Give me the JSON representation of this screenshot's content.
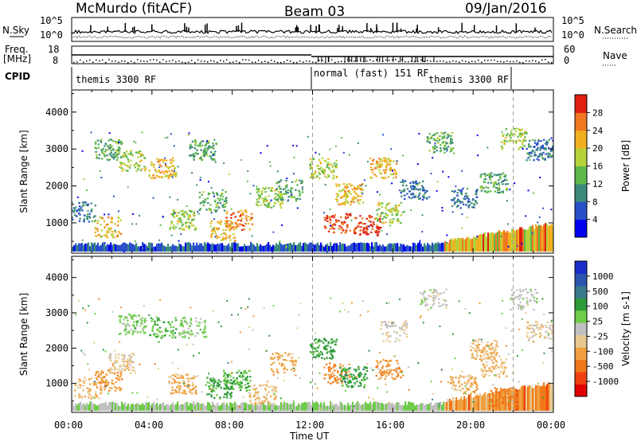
{
  "header": {
    "radar": "McMurdo (fitACF)",
    "beam": "Beam 03",
    "date": "09/Jan/2016"
  },
  "panels": {
    "nsky": {
      "left_label": "N.Sky",
      "right_label": "N.Search",
      "left_ticks": [
        "10^5",
        "10^0"
      ],
      "right_ticks": [
        "10^5",
        "10^0"
      ]
    },
    "freq": {
      "left_label_1": "Freq.",
      "left_label_2": "[MHz]",
      "right_label": "Nave",
      "left_ticks": [
        "18",
        "8"
      ],
      "right_ticks": [
        "60",
        "0"
      ]
    },
    "cpid": {
      "label": "CPID",
      "segments": [
        "themis 3300 RF",
        "normal (fast) 151 RF",
        "themis 3300 RF"
      ]
    }
  },
  "chart_data": [
    {
      "type": "heatmap",
      "title": "",
      "xlabel": "Time UT",
      "ylabel": "Slant Range [km]",
      "xlim_hours": [
        0,
        24
      ],
      "ylim_km": [
        180,
        4600
      ],
      "x_tick_labels": [
        "00:00",
        "04:00",
        "08:00",
        "12:00",
        "16:00",
        "20:00",
        "00:00"
      ],
      "y_tick_values": [
        1000,
        2000,
        3000,
        4000
      ],
      "colorbar": {
        "label": "Power [dB]",
        "ticks": [
          4,
          8,
          12,
          16,
          20,
          24,
          28
        ],
        "range": [
          0,
          30
        ],
        "colors": [
          "#0000ee",
          "#2a4fc8",
          "#3a8a7a",
          "#5fb84a",
          "#b5d23a",
          "#f0b020",
          "#f07820",
          "#e02010"
        ]
      },
      "blobs": [
        {
          "t": 0.5,
          "r": 1300,
          "value": 8
        },
        {
          "t": 1.8,
          "r": 900,
          "value": 20
        },
        {
          "t": 1.8,
          "r": 3000,
          "value": 12
        },
        {
          "t": 3.0,
          "r": 2700,
          "value": 16
        },
        {
          "t": 4.5,
          "r": 2500,
          "value": 20
        },
        {
          "t": 5.5,
          "r": 1100,
          "value": 16
        },
        {
          "t": 6.5,
          "r": 3000,
          "value": 12
        },
        {
          "t": 7.0,
          "r": 1600,
          "value": 12
        },
        {
          "t": 7.5,
          "r": 800,
          "value": 20
        },
        {
          "t": 8.3,
          "r": 1100,
          "value": 24
        },
        {
          "t": 9.8,
          "r": 1700,
          "value": 16
        },
        {
          "t": 10.8,
          "r": 1900,
          "value": 12
        },
        {
          "t": 12.5,
          "r": 2500,
          "value": 16
        },
        {
          "t": 13.2,
          "r": 1000,
          "value": 26
        },
        {
          "t": 13.8,
          "r": 1800,
          "value": 20
        },
        {
          "t": 14.7,
          "r": 950,
          "value": 28
        },
        {
          "t": 15.8,
          "r": 1300,
          "value": 16
        },
        {
          "t": 15.5,
          "r": 2500,
          "value": 20
        },
        {
          "t": 17.0,
          "r": 1900,
          "value": 8
        },
        {
          "t": 18.3,
          "r": 3200,
          "value": 12
        },
        {
          "t": 19.5,
          "r": 1700,
          "value": 8
        },
        {
          "t": 21.0,
          "r": 2100,
          "value": 12
        },
        {
          "t": 22.0,
          "r": 3300,
          "value": 16
        },
        {
          "t": 23.3,
          "r": 3000,
          "value": 8
        }
      ]
    },
    {
      "type": "heatmap",
      "title": "",
      "xlabel": "Time UT",
      "ylabel": "Slant Range [km]",
      "xlim_hours": [
        0,
        24
      ],
      "ylim_km": [
        180,
        4600
      ],
      "x_tick_labels": [
        "00:00",
        "04:00",
        "08:00",
        "12:00",
        "16:00",
        "20:00",
        "00:00"
      ],
      "y_tick_values": [
        1000,
        2000,
        3000,
        4000
      ],
      "colorbar": {
        "label": "Velocity [m s-1]",
        "ticks": [
          "-1000",
          "-500",
          "-100",
          "-25",
          "25",
          "100",
          "500",
          "1000"
        ],
        "range": [
          -1200,
          1200
        ],
        "colors": [
          "#e00000",
          "#f04010",
          "#f07818",
          "#f0a040",
          "#e8c890",
          "#c0c0c0",
          "#6ecc4a",
          "#2f9a3a",
          "#3a7a8a",
          "#2d55b0",
          "#1a2ec8"
        ]
      },
      "blobs": [
        {
          "t": 0.8,
          "r": 900,
          "value": -300
        },
        {
          "t": 1.8,
          "r": 1100,
          "value": -500
        },
        {
          "t": 2.5,
          "r": 1600,
          "value": -200
        },
        {
          "t": 3.0,
          "r": 2700,
          "value": 200
        },
        {
          "t": 4.5,
          "r": 2600,
          "value": 300
        },
        {
          "t": 5.5,
          "r": 1000,
          "value": -400
        },
        {
          "t": 6.0,
          "r": 2600,
          "value": 150
        },
        {
          "t": 7.3,
          "r": 900,
          "value": 400
        },
        {
          "t": 8.2,
          "r": 1100,
          "value": 300
        },
        {
          "t": 9.5,
          "r": 700,
          "value": -300
        },
        {
          "t": 10.5,
          "r": 1600,
          "value": -400
        },
        {
          "t": 12.5,
          "r": 2000,
          "value": 400
        },
        {
          "t": 13.2,
          "r": 1300,
          "value": -600
        },
        {
          "t": 14.0,
          "r": 1200,
          "value": 400
        },
        {
          "t": 15.8,
          "r": 1400,
          "value": -500
        },
        {
          "t": 16.0,
          "r": 2500,
          "value": -80
        },
        {
          "t": 18.0,
          "r": 3400,
          "value": 0
        },
        {
          "t": 19.5,
          "r": 1000,
          "value": -400
        },
        {
          "t": 20.5,
          "r": 2000,
          "value": -300
        },
        {
          "t": 21.0,
          "r": 1500,
          "value": -300
        },
        {
          "t": 21.5,
          "r": 600,
          "value": -600
        },
        {
          "t": 22.5,
          "r": 3400,
          "value": 20
        },
        {
          "t": 23.3,
          "r": 2500,
          "value": -200
        }
      ]
    }
  ]
}
